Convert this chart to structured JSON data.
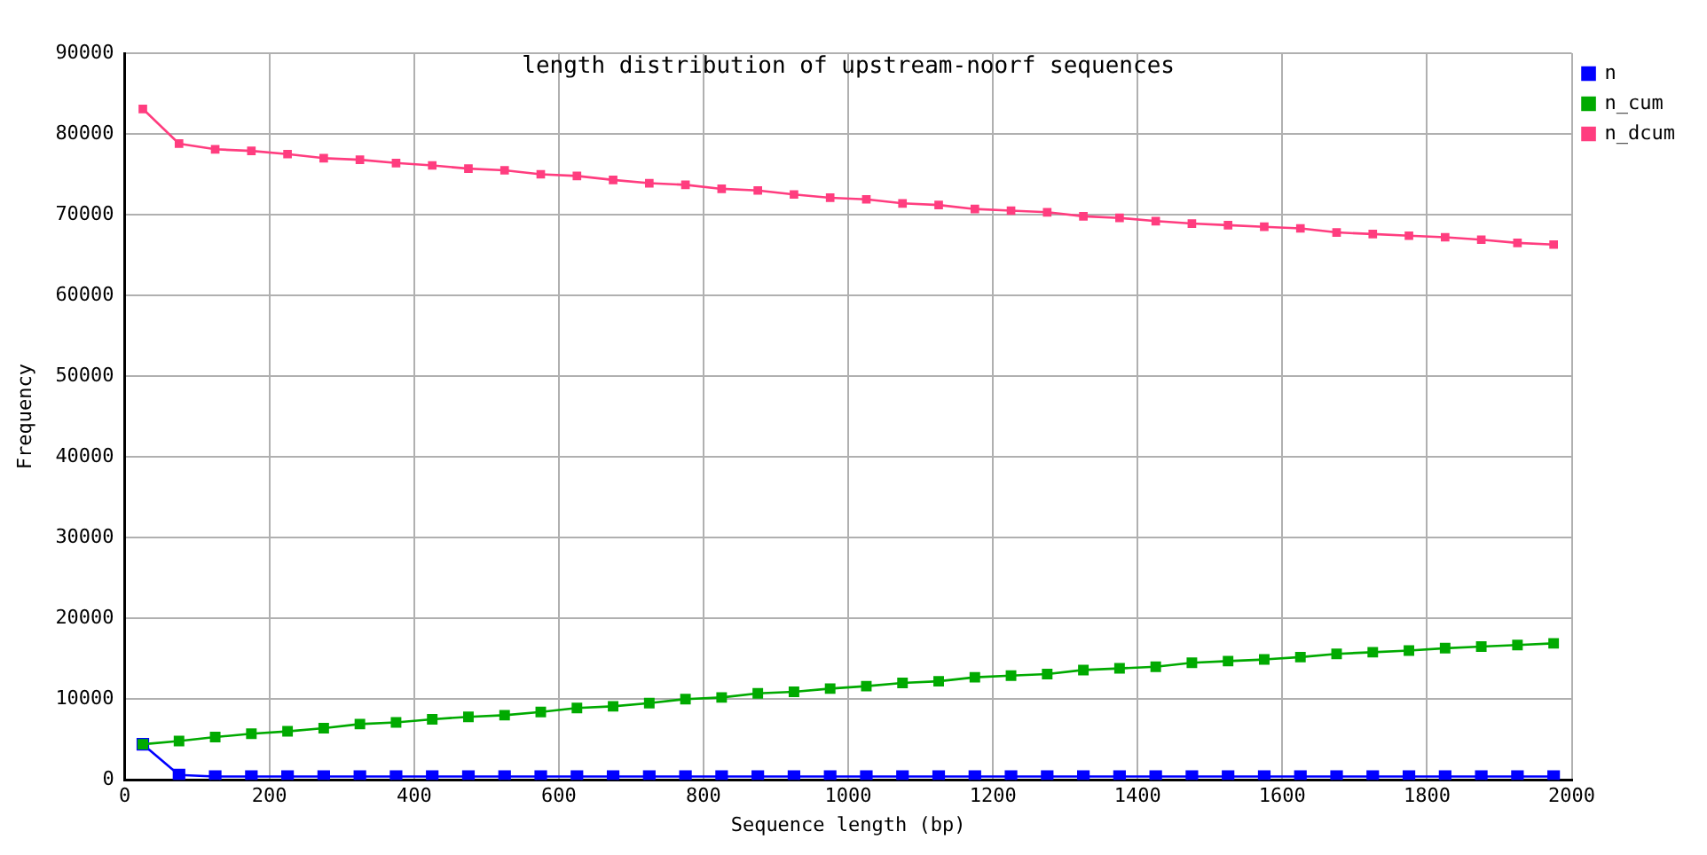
{
  "chart_data": {
    "type": "line",
    "title": "length distribution of upstream-noorf sequences",
    "xlabel": "Sequence length (bp)",
    "ylabel": "Frequency",
    "x": [
      25,
      75,
      125,
      175,
      225,
      275,
      325,
      375,
      425,
      475,
      525,
      575,
      625,
      675,
      725,
      775,
      825,
      875,
      925,
      975,
      1025,
      1075,
      1125,
      1175,
      1225,
      1275,
      1325,
      1375,
      1425,
      1475,
      1525,
      1575,
      1625,
      1675,
      1725,
      1775,
      1825,
      1875,
      1925,
      1975
    ],
    "series": [
      {
        "name": "n",
        "color": "#0000ff",
        "values": [
          4400,
          600,
          400,
          400,
          400,
          400,
          400,
          400,
          400,
          400,
          400,
          400,
          400,
          400,
          400,
          400,
          400,
          400,
          400,
          400,
          400,
          400,
          400,
          400,
          400,
          400,
          400,
          400,
          400,
          400,
          400,
          400,
          400,
          400,
          400,
          400,
          400,
          400,
          400,
          400
        ]
      },
      {
        "name": "n_cum",
        "color": "#00aa00",
        "values": [
          4400,
          4800,
          5300,
          5700,
          6000,
          6400,
          6900,
          7100,
          7500,
          7800,
          8000,
          8400,
          8900,
          9100,
          9500,
          10000,
          10200,
          10700,
          10900,
          11300,
          11600,
          12000,
          12200,
          12700,
          12900,
          13100,
          13600,
          13800,
          14000,
          14500,
          14700,
          14900,
          15200,
          15600,
          15800,
          16000,
          16300,
          16500,
          16700,
          16900
        ]
      },
      {
        "name": "n_dcum",
        "color": "#ff3d7f",
        "values": [
          83100,
          78800,
          78100,
          77900,
          77500,
          77000,
          76800,
          76400,
          76100,
          75700,
          75500,
          75000,
          74800,
          74300,
          73900,
          73700,
          73200,
          73000,
          72500,
          72100,
          71900,
          71400,
          71200,
          70700,
          70500,
          70300,
          69800,
          69600,
          69200,
          68900,
          68700,
          68500,
          68300,
          67800,
          67600,
          67400,
          67200,
          66900,
          66500,
          66300
        ]
      }
    ],
    "xlim": [
      0,
      2000
    ],
    "xticks": [
      0,
      200,
      400,
      600,
      800,
      1000,
      1200,
      1400,
      1600,
      1800,
      2000
    ],
    "ylim": [
      0,
      90000
    ],
    "yticks": [
      0,
      10000,
      20000,
      30000,
      40000,
      50000,
      60000,
      70000,
      80000,
      90000
    ],
    "grid": true,
    "legend": "top right",
    "marker": "square",
    "line_style": "solid"
  }
}
